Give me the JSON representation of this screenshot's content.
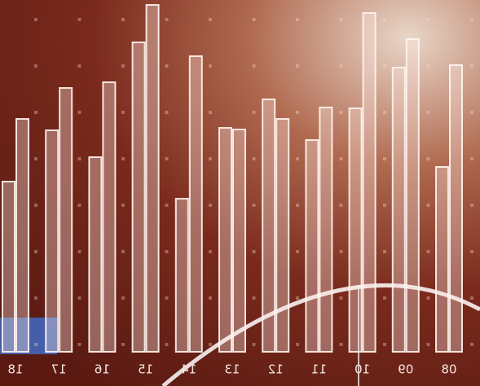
{
  "chart_data": {
    "type": "bar",
    "categories": [
      "18",
      "17",
      "16",
      "15",
      "14",
      "13",
      "12",
      "11",
      "10",
      "09",
      "08"
    ],
    "series": [
      {
        "color": "rgba(255,235,230,0.35)",
        "values": [
          209,
          272,
          239,
          380,
          188,
          275,
          310,
          260,
          299,
          349,
          227
        ]
      },
      {
        "color": "rgba(255,235,230,0.35)",
        "values": [
          286,
          324,
          331,
          426,
          363,
          273,
          286,
          300,
          416,
          384,
          352
        ]
      }
    ],
    "mirrored_labels": true
  }
}
